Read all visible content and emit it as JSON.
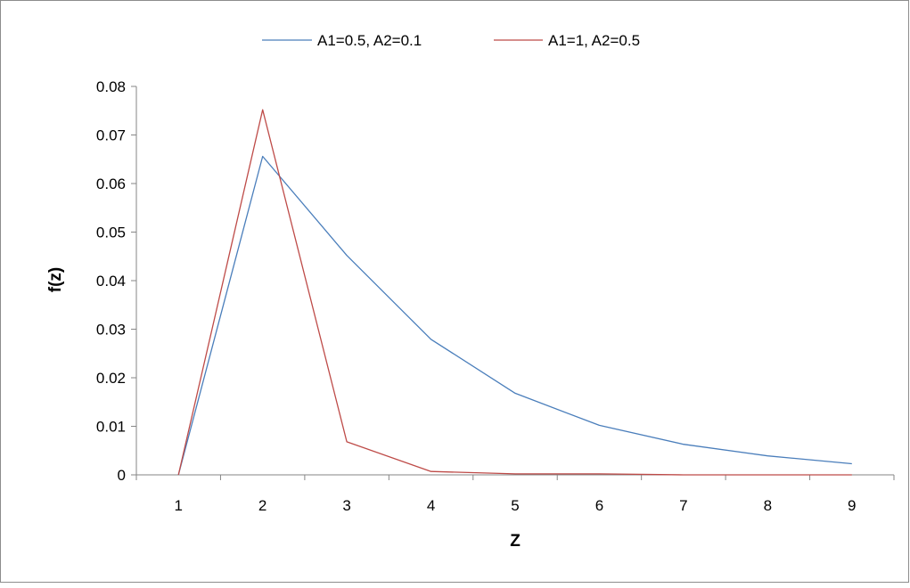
{
  "chart_data": {
    "type": "line",
    "title": "",
    "xlabel": "Z",
    "ylabel": "f(z)",
    "x": [
      1,
      2,
      3,
      4,
      5,
      6,
      7,
      8,
      9
    ],
    "xlim": [
      1,
      9
    ],
    "ylim": [
      0,
      0.08
    ],
    "y_ticks": [
      "0",
      "0.01",
      "0.02",
      "0.03",
      "0.04",
      "0.05",
      "0.06",
      "0.07",
      "0.08"
    ],
    "x_ticks": [
      "1",
      "2",
      "3",
      "4",
      "5",
      "6",
      "7",
      "8",
      "9"
    ],
    "grid": false,
    "legend_position": "top",
    "series": [
      {
        "name": "A1=0.5, A2=0.1",
        "color": "#4a7ebb",
        "values": [
          0.0,
          0.0656,
          0.0452,
          0.0279,
          0.0168,
          0.0102,
          0.0063,
          0.0039,
          0.0023
        ]
      },
      {
        "name": "A1=1, A2=0.5",
        "color": "#be4b48",
        "values": [
          0.0,
          0.0752,
          0.0068,
          0.0007,
          0.0002,
          0.0002,
          0.0,
          0.0,
          0.0
        ]
      }
    ]
  }
}
